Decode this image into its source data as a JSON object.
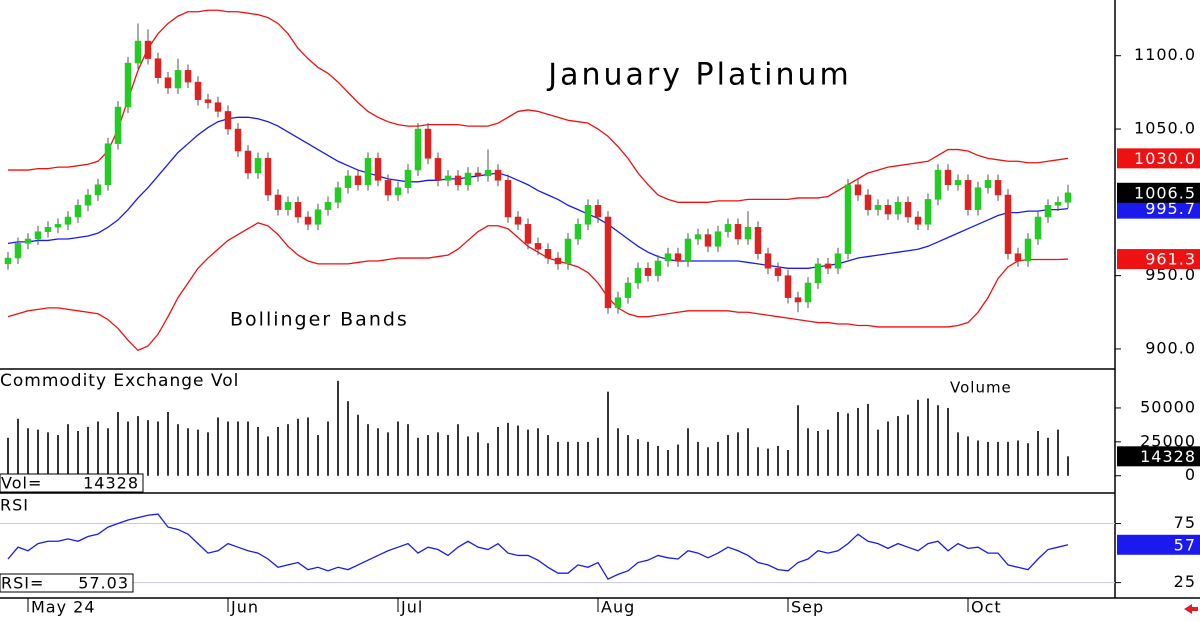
{
  "chart_data": [
    {
      "type": "candlestick",
      "title": "January Platinum",
      "annotation": "Bollinger Bands",
      "categories": [
        null,
        null,
        "May 24",
        null,
        null,
        null,
        null,
        null,
        null,
        null,
        null,
        null,
        null,
        null,
        null,
        null,
        null,
        null,
        null,
        null,
        null,
        null,
        "Jun",
        null,
        null,
        null,
        null,
        null,
        null,
        null,
        null,
        null,
        null,
        null,
        null,
        null,
        null,
        null,
        null,
        "Jul",
        null,
        null,
        null,
        null,
        null,
        null,
        null,
        null,
        null,
        null,
        null,
        null,
        null,
        null,
        null,
        null,
        null,
        null,
        null,
        "Aug",
        null,
        null,
        null,
        null,
        null,
        null,
        null,
        null,
        null,
        null,
        null,
        null,
        null,
        null,
        null,
        null,
        null,
        null,
        "Sep",
        null,
        null,
        null,
        null,
        null,
        null,
        null,
        null,
        null,
        null,
        null,
        null,
        null,
        null,
        null,
        null,
        null,
        "Oct",
        null,
        null,
        null,
        null,
        null,
        null,
        null,
        null,
        null,
        null
      ],
      "open": [
        958,
        962,
        972,
        975,
        980,
        983,
        985,
        990,
        998,
        1005,
        1012,
        1040,
        1065,
        1095,
        1110,
        1098,
        1085,
        1078,
        1090,
        1082,
        1070,
        1068,
        1062,
        1050,
        1035,
        1020,
        1030,
        1005,
        995,
        1000,
        990,
        985,
        995,
        1000,
        1010,
        1018,
        1012,
        1030,
        1015,
        1005,
        1010,
        1022,
        1050,
        1030,
        1015,
        1018,
        1012,
        1020,
        1018,
        1022,
        1015,
        990,
        985,
        972,
        968,
        962,
        958,
        975,
        985,
        998,
        990,
        928,
        935,
        945,
        955,
        950,
        960,
        965,
        960,
        975,
        978,
        970,
        980,
        985,
        975,
        983,
        965,
        955,
        950,
        935,
        932,
        945,
        958,
        955,
        965,
        1012,
        1005,
        995,
        998,
        992,
        1000,
        990,
        985,
        1002,
        1022,
        1012,
        1015,
        995,
        1010,
        1015,
        1005,
        965,
        960,
        975,
        990,
        998,
        1000
      ],
      "high": [
        966,
        976,
        979,
        984,
        987,
        989,
        994,
        1002,
        1009,
        1016,
        1044,
        1069,
        1099,
        1122,
        1118,
        1102,
        1089,
        1098,
        1094,
        1086,
        1074,
        1072,
        1066,
        1054,
        1039,
        1034,
        1034,
        1009,
        1004,
        1004,
        994,
        999,
        1004,
        1014,
        1022,
        1022,
        1034,
        1034,
        1019,
        1014,
        1026,
        1054,
        1054,
        1034,
        1022,
        1022,
        1024,
        1024,
        1036,
        1026,
        1019,
        994,
        989,
        976,
        972,
        966,
        979,
        989,
        1002,
        1002,
        994,
        939,
        949,
        959,
        959,
        964,
        969,
        969,
        979,
        982,
        982,
        984,
        989,
        989,
        994,
        987,
        969,
        959,
        954,
        939,
        949,
        962,
        962,
        969,
        1016,
        1016,
        1009,
        1002,
        1002,
        1004,
        1004,
        994,
        1006,
        1026,
        1026,
        1019,
        1019,
        1014,
        1019,
        1019,
        1009,
        969,
        979,
        994,
        1002,
        1004,
        1012
      ],
      "low": [
        954,
        958,
        968,
        971,
        976,
        979,
        981,
        986,
        994,
        1001,
        1008,
        1036,
        1061,
        1091,
        1094,
        1081,
        1074,
        1074,
        1078,
        1066,
        1064,
        1058,
        1046,
        1031,
        1016,
        1016,
        1001,
        991,
        991,
        986,
        981,
        981,
        991,
        996,
        1006,
        1008,
        1008,
        1011,
        1001,
        1001,
        1006,
        1018,
        1026,
        1011,
        1011,
        1008,
        1008,
        1014,
        1014,
        1011,
        986,
        981,
        968,
        964,
        958,
        954,
        954,
        971,
        981,
        986,
        924,
        924,
        931,
        941,
        946,
        946,
        956,
        956,
        956,
        971,
        966,
        966,
        976,
        971,
        971,
        961,
        951,
        946,
        931,
        925,
        928,
        941,
        951,
        951,
        961,
        1001,
        991,
        991,
        988,
        988,
        986,
        981,
        981,
        998,
        1008,
        1008,
        991,
        991,
        1006,
        1001,
        961,
        956,
        956,
        971,
        986,
        994,
        996
      ],
      "close": [
        962,
        972,
        975,
        980,
        983,
        985,
        990,
        998,
        1005,
        1012,
        1040,
        1065,
        1095,
        1110,
        1098,
        1085,
        1078,
        1090,
        1082,
        1070,
        1068,
        1062,
        1050,
        1035,
        1020,
        1030,
        1005,
        995,
        1000,
        990,
        985,
        995,
        1000,
        1010,
        1018,
        1012,
        1030,
        1015,
        1005,
        1010,
        1022,
        1050,
        1030,
        1015,
        1018,
        1012,
        1020,
        1018,
        1022,
        1015,
        990,
        985,
        972,
        968,
        962,
        958,
        975,
        985,
        998,
        990,
        928,
        935,
        945,
        955,
        950,
        960,
        965,
        960,
        975,
        978,
        970,
        980,
        985,
        975,
        983,
        965,
        955,
        950,
        935,
        932,
        945,
        958,
        955,
        965,
        1012,
        1005,
        995,
        998,
        992,
        1000,
        990,
        985,
        1002,
        1022,
        1012,
        1015,
        995,
        1010,
        1015,
        1005,
        965,
        960,
        975,
        990,
        998,
        1000,
        1006.5
      ],
      "up_color": "#22cc22",
      "down_color": "#dd2222",
      "overlays": [
        {
          "color": "#ee1111",
          "last_label": "1030.0",
          "values": [
            1022,
            1022,
            1022,
            1023,
            1023,
            1024,
            1024,
            1025,
            1026,
            1028,
            1035,
            1050,
            1070,
            1090,
            1105,
            1115,
            1122,
            1127,
            1130,
            1130,
            1131,
            1131,
            1130,
            1130,
            1129,
            1128,
            1126,
            1122,
            1115,
            1105,
            1098,
            1092,
            1088,
            1082,
            1075,
            1068,
            1062,
            1058,
            1055,
            1053,
            1052,
            1052,
            1053,
            1053,
            1053,
            1053,
            1052,
            1052,
            1052,
            1054,
            1058,
            1062,
            1063,
            1062,
            1060,
            1058,
            1056,
            1055,
            1054,
            1050,
            1045,
            1038,
            1030,
            1020,
            1012,
            1005,
            1002,
            1000,
            1000,
            1000,
            1000,
            1001,
            1001,
            1001,
            1002,
            1002,
            1002,
            1002,
            1002,
            1003,
            1003,
            1003,
            1004,
            1008,
            1012,
            1016,
            1020,
            1022,
            1024,
            1025,
            1026,
            1027,
            1028,
            1032,
            1036,
            1036,
            1035,
            1032,
            1030,
            1029,
            1028,
            1028,
            1027,
            1027,
            1028,
            1029,
            1030
          ]
        },
        {
          "color": "#1a1aee",
          "values": [
            972,
            973,
            973,
            974,
            974,
            975,
            975,
            976,
            977,
            979,
            983,
            988,
            995,
            1003,
            1010,
            1018,
            1026,
            1034,
            1040,
            1046,
            1051,
            1055,
            1057,
            1058,
            1058,
            1057,
            1055,
            1052,
            1048,
            1044,
            1040,
            1036,
            1032,
            1028,
            1025,
            1022,
            1020,
            1018,
            1016,
            1015,
            1014,
            1014,
            1015,
            1015,
            1016,
            1016,
            1017,
            1018,
            1019,
            1020,
            1018,
            1015,
            1012,
            1008,
            1005,
            1002,
            998,
            995,
            992,
            989,
            985,
            980,
            975,
            970,
            966,
            963,
            961,
            960,
            960,
            960,
            960,
            960,
            960,
            960,
            959,
            958,
            957,
            956,
            955,
            955,
            955,
            956,
            957,
            958,
            960,
            962,
            963,
            964,
            965,
            966,
            967,
            968,
            970,
            973,
            976,
            979,
            982,
            985,
            988,
            991,
            993,
            993,
            994,
            994,
            995,
            995,
            995.7
          ]
        },
        {
          "color": "#ee1111",
          "values": [
            922,
            924,
            926,
            927,
            928,
            928,
            927,
            926,
            925,
            924,
            920,
            914,
            906,
            899,
            902,
            910,
            922,
            935,
            945,
            955,
            962,
            968,
            974,
            978,
            982,
            986,
            984,
            978,
            970,
            964,
            960,
            958,
            958,
            958,
            958,
            959,
            960,
            960,
            961,
            962,
            962,
            962,
            962,
            963,
            964,
            968,
            974,
            980,
            984,
            984,
            982,
            976,
            970,
            966,
            962,
            960,
            958,
            956,
            952,
            945,
            935,
            928,
            924,
            922,
            922,
            923,
            924,
            925,
            926,
            926,
            926,
            926,
            926,
            925,
            925,
            924,
            923,
            922,
            921,
            920,
            919,
            918,
            918,
            917,
            917,
            916,
            916,
            915,
            915,
            915,
            915,
            915,
            915,
            915,
            915,
            916,
            918,
            925,
            935,
            948,
            956,
            960,
            961,
            961,
            961,
            961,
            961.3
          ]
        }
      ],
      "ylim": [
        887,
        1138
      ],
      "yticks": [
        {
          "value": 900,
          "label": "900.0"
        },
        {
          "value": 950,
          "label": "950.0"
        },
        {
          "value": 1050,
          "label": "1050.0"
        },
        {
          "value": 1100,
          "label": "1100.0"
        }
      ]
    },
    {
      "type": "bar",
      "title": "Commodity Exchange Vol",
      "legend": "Volume",
      "readout": "Vol=",
      "color": "#000000",
      "values": [
        28000,
        42000,
        35000,
        34000,
        32000,
        30000,
        38000,
        33000,
        36000,
        40000,
        35000,
        47000,
        40000,
        44000,
        41000,
        40000,
        47000,
        38000,
        35000,
        34000,
        32000,
        43000,
        40000,
        40000,
        40000,
        36000,
        29000,
        36000,
        38000,
        42000,
        43000,
        30000,
        40000,
        70000,
        55000,
        45000,
        38000,
        35000,
        32000,
        40000,
        38000,
        28000,
        30000,
        32000,
        30000,
        38000,
        29000,
        32000,
        24000,
        36000,
        39000,
        37000,
        34000,
        35000,
        30000,
        25000,
        25000,
        25000,
        25000,
        28000,
        62000,
        35000,
        30000,
        27000,
        25000,
        22000,
        19000,
        23000,
        35000,
        25000,
        21000,
        25000,
        30000,
        32000,
        35000,
        21000,
        20000,
        22000,
        19000,
        52000,
        35000,
        33000,
        34000,
        47000,
        46000,
        50000,
        53000,
        34000,
        40000,
        44000,
        45000,
        56000,
        57000,
        52000,
        50000,
        32000,
        29000,
        26000,
        25000,
        25000,
        25000,
        26000,
        24000,
        33000,
        28000,
        34000,
        14328
      ],
      "ylim": [
        -12000,
        78000
      ],
      "yticks": [
        0,
        25000,
        50000
      ]
    },
    {
      "type": "line",
      "title": "RSI",
      "readout": "RSI=",
      "color": "#1a1aee",
      "last_label": "57",
      "values": [
        45,
        55,
        52,
        58,
        60,
        60,
        62,
        60,
        64,
        66,
        72,
        75,
        78,
        80,
        82,
        83,
        72,
        70,
        66,
        58,
        50,
        52,
        58,
        55,
        52,
        50,
        45,
        38,
        40,
        42,
        36,
        38,
        35,
        38,
        36,
        40,
        44,
        48,
        52,
        55,
        58,
        50,
        55,
        53,
        48,
        55,
        60,
        55,
        53,
        58,
        50,
        48,
        48,
        44,
        38,
        33,
        33,
        40,
        38,
        42,
        28,
        32,
        35,
        42,
        44,
        48,
        46,
        45,
        52,
        50,
        46,
        50,
        55,
        52,
        48,
        42,
        40,
        36,
        35,
        42,
        45,
        52,
        50,
        52,
        58,
        66,
        60,
        58,
        54,
        58,
        55,
        52,
        58,
        60,
        52,
        58,
        54,
        55,
        50,
        50,
        40,
        38,
        36,
        45,
        53,
        55,
        57.03
      ],
      "ylim": [
        12,
        100
      ],
      "yticks": [
        25,
        75
      ],
      "grid": true
    }
  ]
}
